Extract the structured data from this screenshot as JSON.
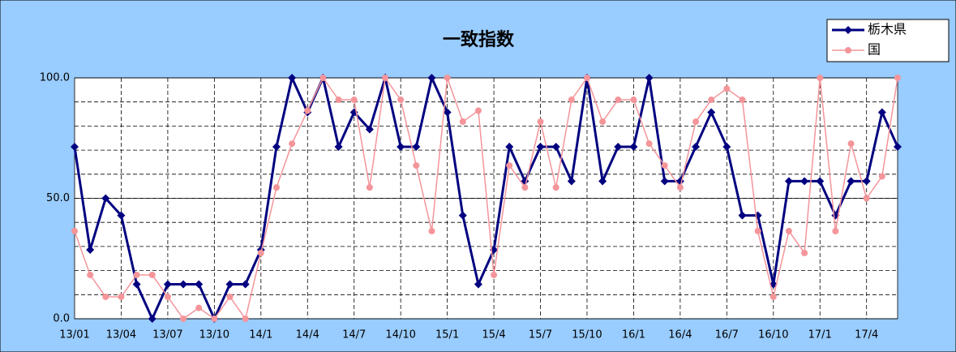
{
  "chart_data": {
    "type": "line",
    "title": "一致指数",
    "categories": [
      "13/01",
      null,
      null,
      "13/04",
      null,
      null,
      "13/07",
      null,
      null,
      "13/10",
      null,
      null,
      "14/1",
      null,
      null,
      "14/4",
      null,
      null,
      "14/7",
      null,
      null,
      "14/10",
      null,
      null,
      "15/1",
      null,
      null,
      "15/4",
      null,
      null,
      "15/7",
      null,
      null,
      "15/10",
      null,
      null,
      "16/1",
      null,
      null,
      "16/4",
      null,
      null,
      "16/7",
      null,
      null,
      "16/10",
      null,
      null,
      "17/1",
      null,
      null,
      "17/4",
      null,
      null
    ],
    "series": [
      {
        "name": "栃木県",
        "color": "#000080",
        "values": [
          71.4,
          28.6,
          50,
          42.9,
          14.3,
          0,
          14.3,
          14.3,
          14.3,
          0,
          14.3,
          14.3,
          28.6,
          71.4,
          100,
          85.7,
          100,
          71.4,
          85.7,
          78.6,
          100,
          71.4,
          71.4,
          100,
          85.7,
          42.9,
          14.3,
          28.6,
          71.4,
          57.1,
          71.4,
          71.4,
          57.1,
          100,
          57.1,
          71.4,
          71.4,
          100,
          57.1,
          57.1,
          71.4,
          85.7,
          71.4,
          42.9,
          42.9,
          14.3,
          57.1,
          57.1,
          57.1,
          42.9,
          57.1,
          57.1,
          85.7,
          71.4
        ]
      },
      {
        "name": "国",
        "color": "#f4959a",
        "values": [
          36.4,
          18.2,
          9.1,
          9.1,
          18.2,
          18.2,
          9.1,
          0,
          4.5,
          0,
          9.1,
          0,
          27.3,
          54.5,
          72.7,
          86.4,
          100,
          90.9,
          90.9,
          54.5,
          100,
          90.9,
          63.6,
          36.4,
          100,
          81.8,
          86.4,
          18.2,
          63.6,
          54.5,
          81.8,
          54.5,
          90.9,
          100,
          81.8,
          90.9,
          90.9,
          72.7,
          63.6,
          54.5,
          81.8,
          90.9,
          95.5,
          90.9,
          36.4,
          9.1,
          36.4,
          27.3,
          100,
          36.4,
          72.7,
          50,
          59.1,
          100
        ]
      }
    ],
    "ylim": [
      0,
      100
    ],
    "yticks": [
      {
        "value": 0,
        "label": "0.0"
      },
      {
        "value": 50,
        "label": "50.0"
      },
      {
        "value": 100,
        "label": "100.0"
      }
    ],
    "grid": true,
    "legend": "top-right"
  }
}
